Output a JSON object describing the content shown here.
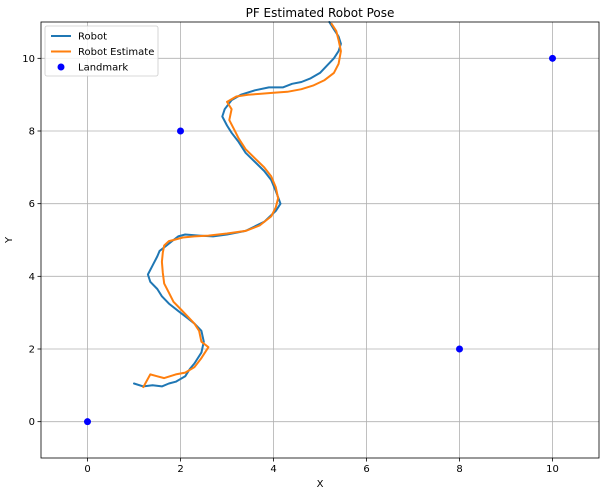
{
  "chart_data": {
    "type": "line",
    "title": "PF Estimated Robot Pose",
    "xlabel": "X",
    "ylabel": "Y",
    "xlim": [
      -1,
      11
    ],
    "ylim": [
      -1,
      11
    ],
    "xticks": [
      0,
      2,
      4,
      6,
      8,
      10
    ],
    "yticks": [
      0,
      2,
      4,
      6,
      8,
      10
    ],
    "grid": true,
    "legend_position": "top-left",
    "series": [
      {
        "name": "Robot",
        "kind": "line",
        "color": "#1f77b4",
        "x": [
          1.0,
          1.2,
          1.4,
          1.6,
          1.75,
          1.9,
          2.1,
          2.2,
          2.3,
          2.45,
          2.5,
          2.45,
          2.3,
          2.15,
          1.95,
          1.75,
          1.6,
          1.5,
          1.35,
          1.3,
          1.4,
          1.5,
          1.55,
          1.7,
          1.85,
          1.95,
          2.1,
          2.4,
          2.7,
          3.0,
          3.4,
          3.8,
          4.05,
          4.15,
          4.05,
          3.95,
          3.8,
          3.6,
          3.4,
          3.25,
          3.1,
          3.0,
          2.9,
          2.95,
          3.1,
          3.3,
          3.6,
          3.9,
          4.2,
          4.4,
          4.6,
          4.8,
          5.0,
          5.15,
          5.3,
          5.4,
          5.45,
          5.4,
          5.3,
          5.2
        ],
        "y": [
          1.05,
          0.97,
          1.0,
          0.97,
          1.05,
          1.1,
          1.25,
          1.45,
          1.6,
          1.9,
          2.2,
          2.5,
          2.7,
          2.85,
          3.05,
          3.25,
          3.45,
          3.65,
          3.85,
          4.05,
          4.3,
          4.55,
          4.7,
          4.85,
          5.0,
          5.1,
          5.15,
          5.12,
          5.1,
          5.15,
          5.25,
          5.5,
          5.8,
          6.0,
          6.35,
          6.65,
          6.9,
          7.15,
          7.4,
          7.7,
          7.95,
          8.15,
          8.4,
          8.6,
          8.85,
          9.0,
          9.12,
          9.2,
          9.2,
          9.3,
          9.35,
          9.45,
          9.6,
          9.8,
          10.0,
          10.2,
          10.4,
          10.6,
          10.8,
          11.0
        ]
      },
      {
        "name": "Robot Estimate",
        "kind": "line",
        "color": "#ff7f0e",
        "x": [
          1.2,
          1.35,
          1.5,
          1.65,
          1.9,
          2.1,
          2.3,
          2.45,
          2.6,
          2.45,
          2.4,
          2.3,
          2.15,
          2.0,
          1.85,
          1.75,
          1.65,
          1.62,
          1.6,
          1.62,
          1.65,
          1.75,
          1.85,
          2.05,
          2.3,
          2.6,
          3.0,
          3.4,
          3.7,
          3.95,
          4.05,
          4.1,
          4.05,
          3.95,
          3.8,
          3.6,
          3.4,
          3.25,
          3.15,
          3.05,
          3.1,
          3.0,
          3.2,
          3.45,
          3.7,
          4.0,
          4.3,
          4.6,
          4.85,
          5.1,
          5.3,
          5.4,
          5.45,
          5.4,
          5.35,
          5.25
        ],
        "y": [
          0.95,
          1.3,
          1.25,
          1.2,
          1.3,
          1.35,
          1.5,
          1.75,
          2.05,
          2.2,
          2.5,
          2.7,
          2.9,
          3.1,
          3.3,
          3.55,
          3.8,
          4.1,
          4.4,
          4.65,
          4.85,
          4.97,
          5.0,
          5.07,
          5.1,
          5.12,
          5.18,
          5.25,
          5.4,
          5.65,
          5.9,
          6.15,
          6.45,
          6.75,
          7.0,
          7.25,
          7.5,
          7.8,
          8.05,
          8.3,
          8.6,
          8.8,
          8.95,
          9.0,
          9.02,
          9.05,
          9.08,
          9.15,
          9.25,
          9.4,
          9.6,
          9.85,
          10.2,
          10.5,
          10.75,
          10.95
        ]
      },
      {
        "name": "Landmark",
        "kind": "scatter",
        "color": "#0000ff",
        "x": [
          0,
          2,
          8,
          10
        ],
        "y": [
          0,
          8,
          2,
          10
        ]
      }
    ]
  }
}
